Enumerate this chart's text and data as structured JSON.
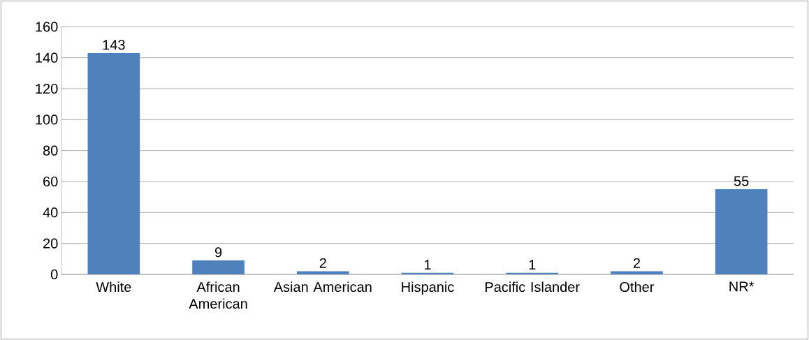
{
  "chart_data": {
    "type": "bar",
    "categories": [
      "White",
      "African American",
      "Asian American",
      "Hispanic",
      "Pacific Islander",
      "Other",
      "NR*"
    ],
    "values": [
      143,
      9,
      2,
      1,
      1,
      2,
      55
    ],
    "color": "#4f81bd",
    "ylim": [
      0,
      160
    ],
    "yticks": [
      0,
      20,
      40,
      60,
      80,
      100,
      120,
      140,
      160
    ],
    "grid": "y",
    "data_labels": true
  }
}
